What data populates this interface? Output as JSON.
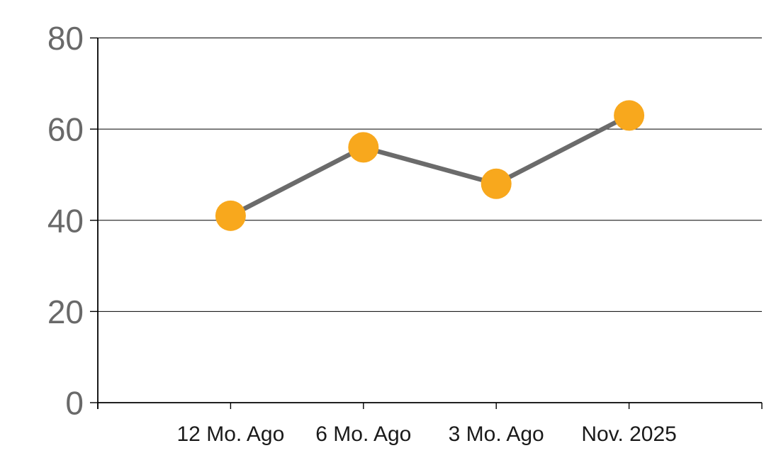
{
  "chart_data": {
    "type": "line",
    "categories": [
      "12 Mo. Ago",
      "6 Mo. Ago",
      "3 Mo. Ago",
      "Nov. 2025"
    ],
    "values": [
      41,
      56,
      48,
      63
    ],
    "title": "",
    "xlabel": "",
    "ylabel": "",
    "ylim": [
      0,
      80
    ],
    "y_ticks": [
      {
        "value": 0,
        "label": "0"
      },
      {
        "value": 20,
        "label": "20"
      },
      {
        "value": 40,
        "label": "40"
      },
      {
        "value": 60,
        "label": "60"
      },
      {
        "value": 80,
        "label": "80"
      }
    ],
    "grid": true,
    "legend": "none",
    "colors": {
      "marker": "#F8A81D",
      "line": "#6B6B6B",
      "y_tick_label": "#696969",
      "x_tick_label": "#1A1A1A",
      "gridline": "#000000",
      "axis": "#000000",
      "background": "#FFFFFF"
    }
  }
}
